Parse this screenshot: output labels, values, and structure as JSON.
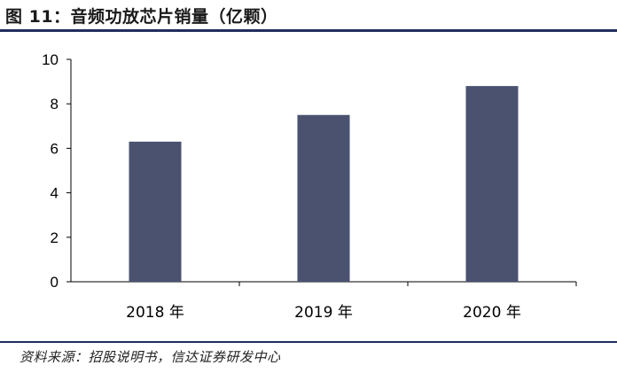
{
  "header": {
    "title": "图 11：音频功放芯片销量（亿颗）"
  },
  "footer": {
    "source": "资料来源：招股说明书，信达证券研发中心"
  },
  "chart_data": {
    "type": "bar",
    "title": "图 11：音频功放芯片销量（亿颗）",
    "categories": [
      "2018 年",
      "2019 年",
      "2020 年"
    ],
    "values": [
      6.3,
      7.5,
      8.8
    ],
    "ylim": [
      0,
      10
    ],
    "yticks": [
      0,
      2,
      4,
      6,
      8,
      10
    ],
    "xlabel": "",
    "ylabel": "",
    "grid": false,
    "legend": "none",
    "bar_color": "#4a5270"
  }
}
